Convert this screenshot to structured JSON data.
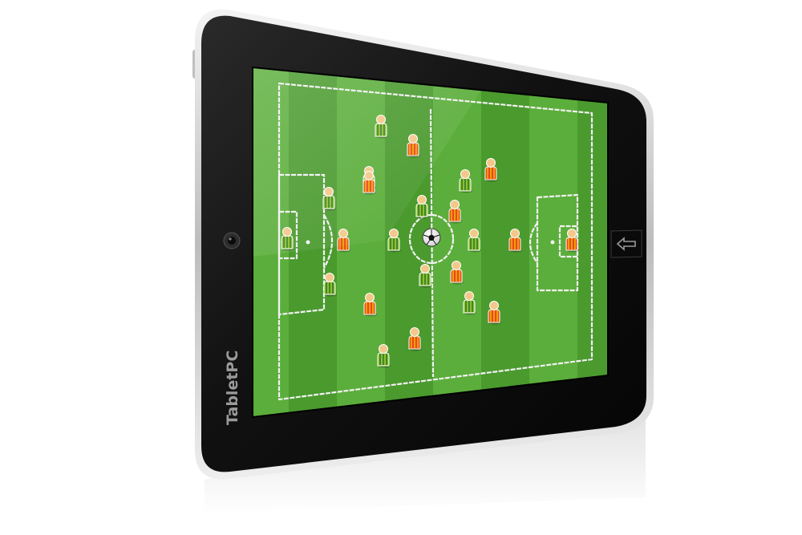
{
  "device": {
    "brand_label": "TabletPC",
    "body_color": "#0e0e0e",
    "bezel_color": "#1a1a1a",
    "rim_color": "#d9d9d9"
  },
  "screen": {
    "pitch_light": "#5bae3b",
    "pitch_dark": "#4a9a2e",
    "line_color": "#f2f2f2"
  },
  "teams": {
    "home_color": "#8fbe2e",
    "home_stripe": "#2c7a2a",
    "away_color": "#e8471f",
    "away_stripe": "#f4b400",
    "skin_color": "#f3c88a"
  },
  "icons": {
    "back_button": "back-arrow-icon",
    "camera": "camera-icon",
    "ball": "football-icon"
  }
}
